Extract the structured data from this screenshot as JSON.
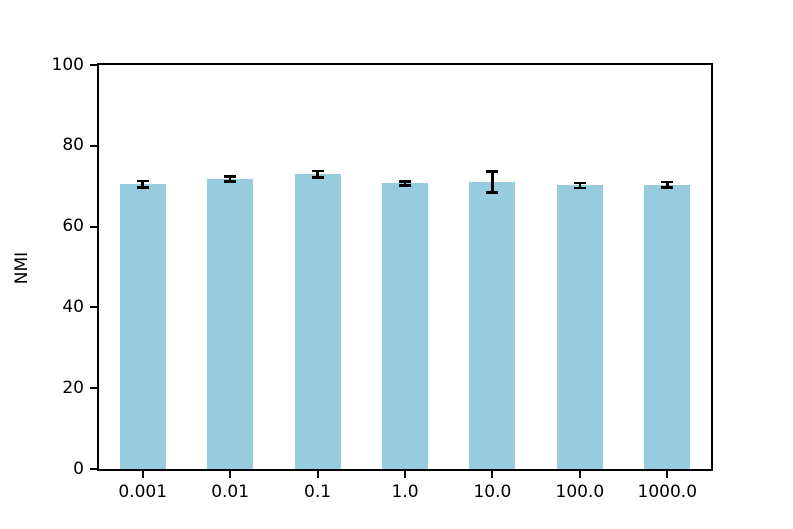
{
  "chart_data": {
    "type": "bar",
    "title": "",
    "xlabel": "",
    "ylabel": "NMI",
    "categories": [
      "0.001",
      "0.01",
      "0.1",
      "1.0",
      "10.0",
      "100.0",
      "1000.0"
    ],
    "values": [
      70.5,
      71.8,
      73.0,
      70.7,
      71.0,
      70.2,
      70.4
    ],
    "errors": [
      1.1,
      0.9,
      1.1,
      0.8,
      2.9,
      0.9,
      1.0
    ],
    "ylim": [
      0,
      100
    ],
    "yticks": [
      "0",
      "20",
      "40",
      "60",
      "80",
      "100"
    ],
    "grid": false,
    "legend": null,
    "bar_color": "#97ccde",
    "error_color": "#000000",
    "axis_color": "#000000",
    "background_color": "#ffffff"
  }
}
